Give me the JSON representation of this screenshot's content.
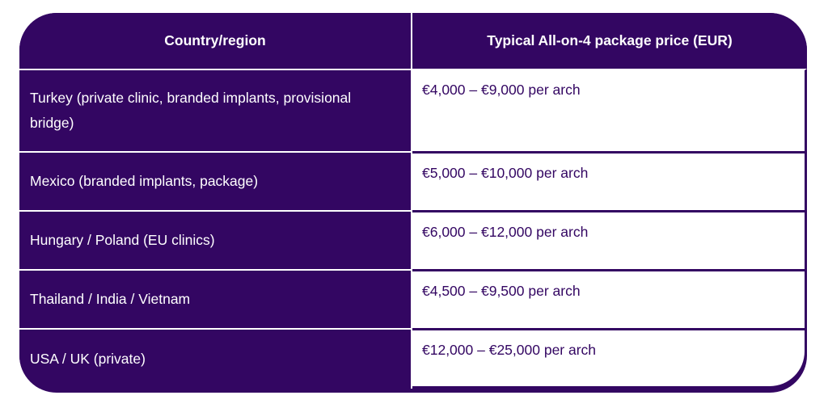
{
  "table": {
    "headers": [
      "Country/region",
      "Typical All-on-4 package price (EUR)"
    ],
    "rows": [
      {
        "region": "Turkey (private clinic, branded implants, provisional bridge)",
        "price": "€4,000 – €9,000 per arch"
      },
      {
        "region": "Mexico (branded implants, package)",
        "price": "€5,000 – €10,000 per arch"
      },
      {
        "region": "Hungary / Poland (EU clinics)",
        "price": "€6,000 – €12,000 per arch"
      },
      {
        "region": "Thailand / India / Vietnam",
        "price": "€4,500 – €9,500 per arch"
      },
      {
        "region": "USA / UK (private)",
        "price": "€12,000 – €25,000 per arch"
      }
    ]
  },
  "colors": {
    "header_bg": "#330662",
    "header_text": "#ffffff",
    "price_text": "#330662"
  }
}
